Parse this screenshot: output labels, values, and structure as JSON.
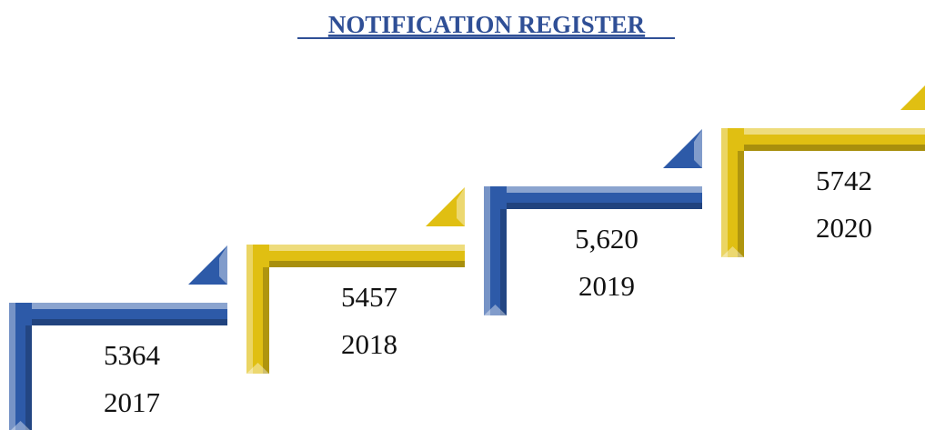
{
  "header": {
    "title": "NOTIFICATION REGISTER"
  },
  "steps": [
    {
      "value": "5364",
      "year": "2017",
      "color": "#2d5aa8"
    },
    {
      "value": "5457",
      "year": "2018",
      "color": "#e0bf12"
    },
    {
      "value": "5,620",
      "year": "2019",
      "color": "#2d5aa8"
    },
    {
      "value": "5742",
      "year": "2020",
      "color": "#e0bf12"
    }
  ]
}
